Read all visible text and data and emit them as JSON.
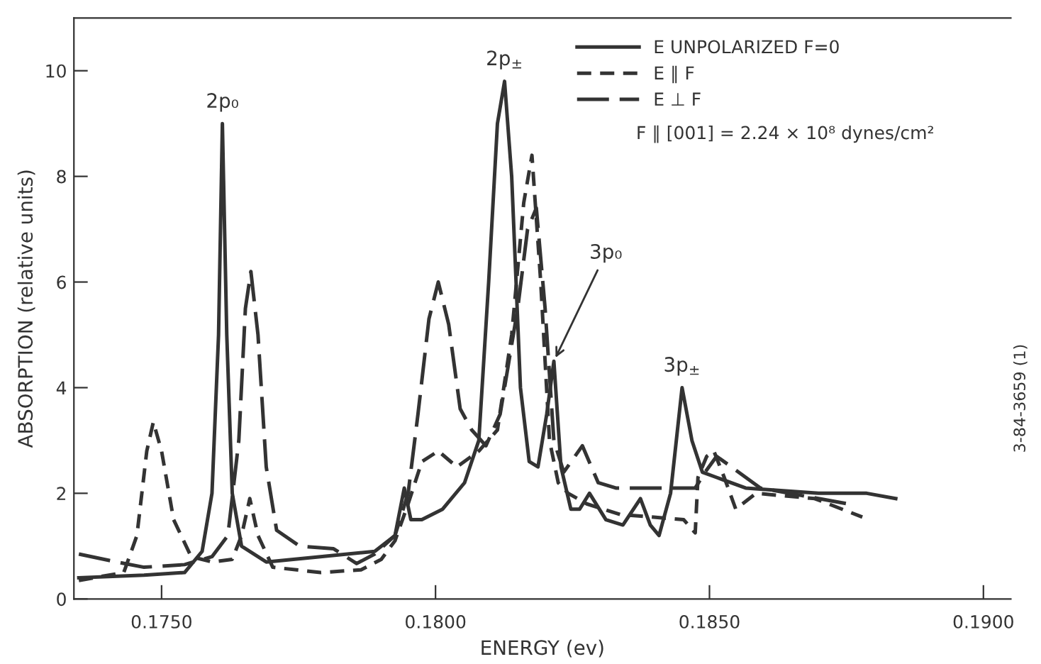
{
  "chart_data": {
    "type": "line",
    "xlabel": "ENERGY (ev)",
    "ylabel": "ABSORPTION (relative units)",
    "xlim": [
      0.1734,
      0.1905
    ],
    "ylim": [
      0,
      11
    ],
    "xticks": [
      {
        "value": 0.175,
        "label": "0.1750"
      },
      {
        "value": 0.18,
        "label": "0.1800"
      },
      {
        "value": 0.185,
        "label": "0.1850"
      },
      {
        "value": 0.19,
        "label": "0.1900"
      }
    ],
    "yticks": [
      0,
      2,
      4,
      6,
      8,
      10
    ],
    "grid": false,
    "legend": "top right",
    "marker": "none",
    "series": [
      {
        "name": "E UNPOLARIZED F=0",
        "color": "#333333",
        "line_style": "solid",
        "x": [
          0.17349,
          0.17468,
          0.17542,
          0.17574,
          0.17592,
          0.17604,
          0.17611,
          0.17619,
          0.17629,
          0.17646,
          0.17691,
          0.1779,
          0.17889,
          0.17926,
          0.17943,
          0.17955,
          0.17975,
          0.18013,
          0.18053,
          0.18079,
          0.18097,
          0.18113,
          0.18126,
          0.18139,
          0.18155,
          0.18171,
          0.18187,
          0.18203,
          0.18216,
          0.18229,
          0.18247,
          0.18263,
          0.18281,
          0.18311,
          0.18342,
          0.18374,
          0.18392,
          0.18408,
          0.18429,
          0.1845,
          0.18468,
          0.18487,
          0.18513,
          0.18566,
          0.18699,
          0.18787,
          0.1884
        ],
        "values": [
          0.4,
          0.45,
          0.5,
          0.9,
          2.0,
          5.0,
          9.0,
          5.0,
          2.0,
          1.0,
          0.7,
          0.8,
          0.9,
          1.2,
          2.1,
          1.5,
          1.5,
          1.7,
          2.2,
          3.0,
          6.0,
          9.0,
          9.8,
          8.0,
          4.0,
          2.6,
          2.5,
          3.5,
          4.5,
          2.5,
          1.7,
          1.7,
          2.0,
          1.5,
          1.4,
          1.9,
          1.4,
          1.2,
          2.0,
          4.0,
          3.0,
          2.4,
          2.3,
          2.1,
          2.0,
          2.0,
          1.9
        ]
      },
      {
        "name": "E ∥ F",
        "color": "#333333",
        "line_style": "dashed",
        "x": [
          0.17349,
          0.17431,
          0.17455,
          0.17473,
          0.17485,
          0.175,
          0.17522,
          0.17554,
          0.17592,
          0.17629,
          0.17646,
          0.17661,
          0.17676,
          0.17703,
          0.1779,
          0.17864,
          0.17901,
          0.17926,
          0.1795,
          0.17975,
          0.18005,
          0.18039,
          0.18079,
          0.18113,
          0.18139,
          0.18161,
          0.18176,
          0.18192,
          0.18208,
          0.18224,
          0.18242,
          0.18276,
          0.18337,
          0.18453,
          0.18474,
          0.18479,
          0.18495,
          0.18508,
          0.18527,
          0.18548,
          0.18585,
          0.18692,
          0.18779
        ],
        "values": [
          0.35,
          0.5,
          1.2,
          2.8,
          3.35,
          2.8,
          1.5,
          0.8,
          0.7,
          0.75,
          1.2,
          1.9,
          1.2,
          0.6,
          0.5,
          0.55,
          0.75,
          1.1,
          1.8,
          2.6,
          2.8,
          2.5,
          2.8,
          3.2,
          5.0,
          7.5,
          8.4,
          6.0,
          3.0,
          2.2,
          2.0,
          1.8,
          1.6,
          1.5,
          1.25,
          2.3,
          2.7,
          2.8,
          2.3,
          1.7,
          2.0,
          1.9,
          1.55
        ]
      },
      {
        "name": "E ⊥ F",
        "color": "#333333",
        "line_style": "longdash",
        "x": [
          0.17349,
          0.17418,
          0.17468,
          0.17542,
          0.17592,
          0.17621,
          0.17641,
          0.17653,
          0.17663,
          0.17676,
          0.17691,
          0.1771,
          0.17752,
          0.17814,
          0.17856,
          0.17889,
          0.17926,
          0.1795,
          0.17968,
          0.17988,
          0.18005,
          0.18024,
          0.18045,
          0.18066,
          0.18092,
          0.18118,
          0.1815,
          0.18168,
          0.18184,
          0.182,
          0.18216,
          0.18234,
          0.18268,
          0.18297,
          0.18329,
          0.18474,
          0.18492,
          0.18513,
          0.1854,
          0.18593,
          0.18699,
          0.18753
        ],
        "values": [
          0.85,
          0.7,
          0.6,
          0.65,
          0.8,
          1.2,
          3.0,
          5.5,
          6.2,
          5.0,
          2.5,
          1.3,
          1.0,
          0.95,
          0.67,
          0.85,
          1.2,
          2.0,
          3.5,
          5.3,
          6.0,
          5.2,
          3.6,
          3.2,
          2.9,
          3.5,
          5.5,
          7.0,
          7.4,
          5.5,
          3.0,
          2.4,
          2.9,
          2.2,
          2.1,
          2.1,
          2.4,
          2.7,
          2.5,
          2.1,
          1.9,
          1.8
        ]
      }
    ],
    "annotations": [
      {
        "text": "2p₀",
        "x": 0.17611,
        "y": 9.0
      },
      {
        "text": "2p$_{±}$",
        "x": 0.18126,
        "y": 9.8
      },
      {
        "text": "3p₀",
        "x": 0.18216,
        "y": 4.5
      },
      {
        "text": "3p$_{±}$",
        "x": 0.1845,
        "y": 4.0
      },
      "F ∥ [001] = 2.24 × 10⁸ dynes/cm²",
      "3-84-3659 (1)"
    ]
  }
}
